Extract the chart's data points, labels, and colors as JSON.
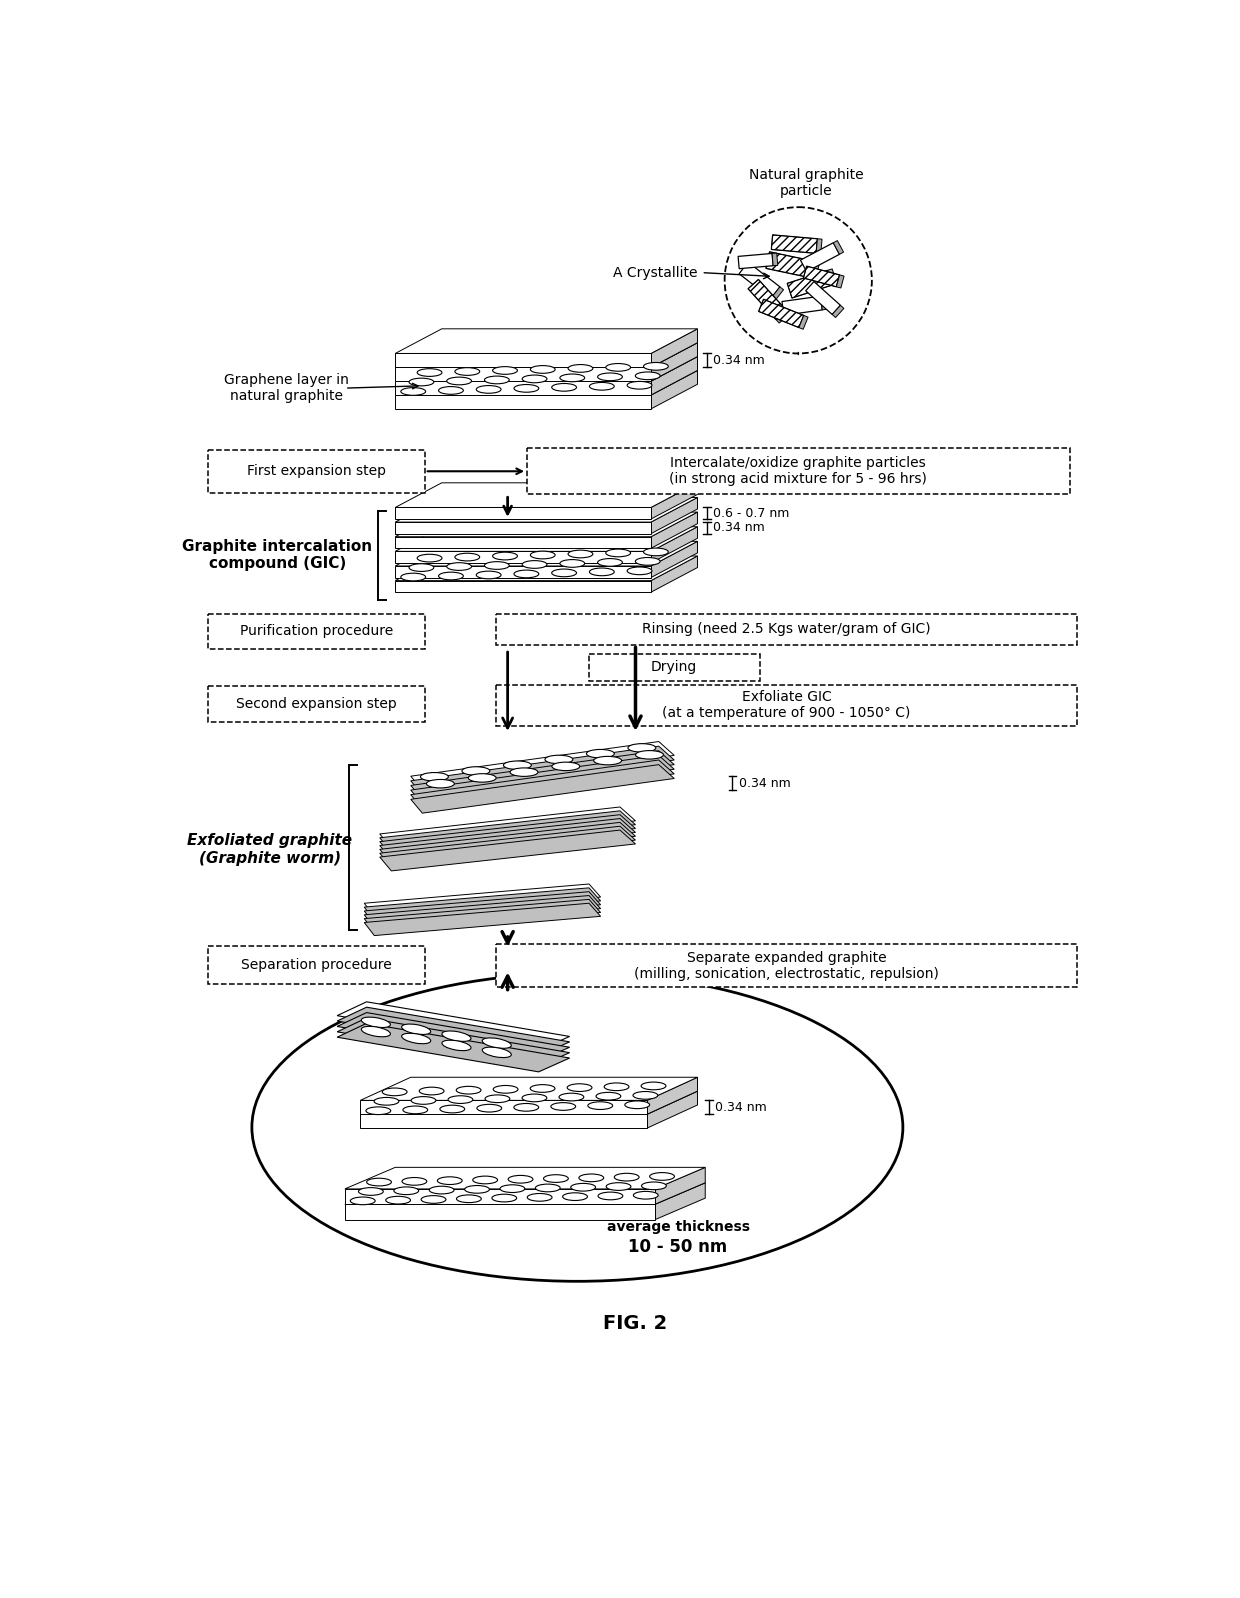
{
  "title": "FIG. 2",
  "bg_color": "#ffffff",
  "labels": {
    "natural_graphite": "Natural graphite\nparticle",
    "crystallite": "A Crystallite",
    "graphene_layer": "Graphene layer in\nnatural graphite",
    "dim_034_top": "0.34 nm",
    "first_expansion": "First expansion step",
    "intercalate": "Intercalate/oxidize graphite particles\n(in strong acid mixture for 5 - 96 hrs)",
    "gic_label": "Graphite intercalation\ncompound (GIC)",
    "dim_067": "0.6 - 0.7 nm",
    "dim_034_gic": "0.34 nm",
    "purification": "Purification procedure",
    "rinsing": "Rinsing (need 2.5 Kgs water/gram of GIC)",
    "drying": "Drying",
    "second_expansion": "Second expansion step",
    "exfoliate": "Exfoliate GIC\n(at a temperature of 900 - 1050° C)",
    "dim_034_worm": "0.34 nm",
    "exfoliated_label": "Exfoliated graphite\n(Graphite worm)",
    "separation": "Separation procedure",
    "separate_expanded": "Separate expanded graphite\n(milling, sonication, electrostatic, repulsion)",
    "dim_034_final": "0.34 nm",
    "avg_thickness": "average thickness",
    "thickness_range": "10 - 50 nm"
  }
}
